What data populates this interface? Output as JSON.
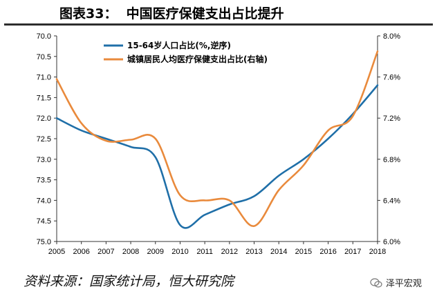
{
  "title": "图表33：  中国医疗保健支出占比提升",
  "source": "资料来源：国家统计局，恒大研究院",
  "watermark": "泽平宏观",
  "chart_data": {
    "type": "line",
    "x": [
      "2005",
      "2006",
      "2007",
      "2008",
      "2009",
      "2010",
      "2011",
      "2012",
      "2013",
      "2014",
      "2015",
      "2016",
      "2017",
      "2018"
    ],
    "left_axis": {
      "ticks": [
        "70.0",
        "70.5",
        "71.0",
        "71.5",
        "72.0",
        "72.5",
        "73.0",
        "73.5",
        "74.0",
        "74.5",
        "75.0"
      ],
      "range": [
        70.0,
        75.0
      ],
      "inverted": true
    },
    "right_axis": {
      "ticks": [
        "6.0%",
        "6.4%",
        "6.8%",
        "7.2%",
        "7.6%",
        "8.0%"
      ],
      "range": [
        6.0,
        8.0
      ]
    },
    "grid": false,
    "legend_position": "top-left",
    "series": [
      {
        "name": "15-64岁人口占比(%,逆序)",
        "axis": "left",
        "color": "#1f6fa8",
        "values": [
          72.0,
          72.3,
          72.5,
          72.7,
          72.95,
          74.6,
          74.35,
          74.1,
          73.9,
          73.4,
          73.0,
          72.5,
          71.9,
          71.2
        ]
      },
      {
        "name": "城镇居民人均医疗保健支出占比(右轴)",
        "axis": "right",
        "color": "#e98a3c",
        "values": [
          7.58,
          7.15,
          6.98,
          6.99,
          7.0,
          6.45,
          6.4,
          6.4,
          6.15,
          6.5,
          6.74,
          7.08,
          7.22,
          7.85
        ]
      }
    ]
  }
}
